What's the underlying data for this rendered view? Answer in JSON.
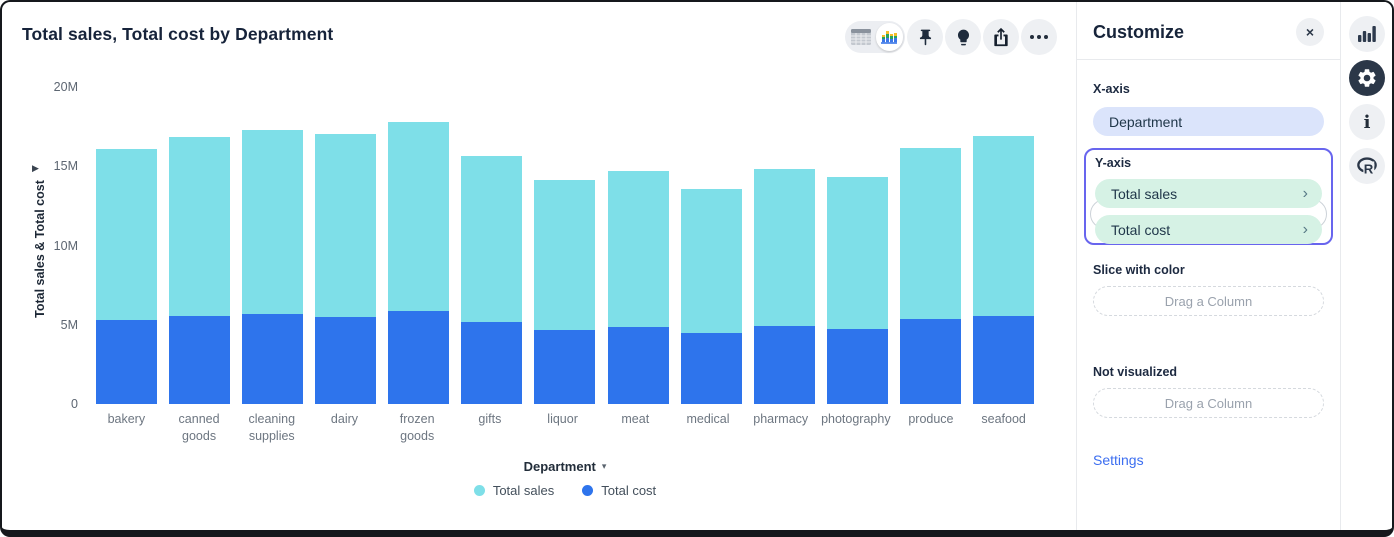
{
  "window": {
    "title": "Total sales, Total cost by Department"
  },
  "toolbar": {
    "view_toggle": {
      "options": [
        "table-view",
        "chart-view"
      ],
      "selected": "chart-view"
    },
    "buttons": [
      "pin",
      "insights",
      "export",
      "more"
    ]
  },
  "icons": {
    "y_axis_expand": "▶",
    "x_axis_dropdown": "▾",
    "pill_chevron": "›",
    "close": "×",
    "info": "i",
    "r_logo": "R"
  },
  "chart_data": {
    "type": "bar",
    "stacked": true,
    "title": "Total sales, Total cost by Department",
    "xlabel": "Department",
    "ylabel": "Total sales & Total cost",
    "categories": [
      "bakery",
      "canned goods",
      "cleaning supplies",
      "dairy",
      "frozen goods",
      "gifts",
      "liquor",
      "meat",
      "medical",
      "pharmacy",
      "photography",
      "produce",
      "seafood"
    ],
    "series": [
      {
        "name": "Total sales",
        "color": "#7EDFE8",
        "values": [
          10800000,
          11300000,
          11600000,
          11550000,
          11950000,
          10500000,
          9500000,
          9850000,
          9050000,
          9900000,
          9600000,
          10800000,
          11350000
        ]
      },
      {
        "name": "Total cost",
        "color": "#2E74EC",
        "values": [
          5300000,
          5550000,
          5700000,
          5500000,
          5850000,
          5150000,
          4650000,
          4850000,
          4500000,
          4900000,
          4750000,
          5350000,
          5550000
        ]
      }
    ],
    "stack_order_bottom_to_top": [
      "Total cost",
      "Total sales"
    ],
    "ylim": [
      0,
      20000000
    ],
    "yticks": [
      {
        "value": 0,
        "label": "0"
      },
      {
        "value": 5000000,
        "label": "5M"
      },
      {
        "value": 10000000,
        "label": "10M"
      },
      {
        "value": 15000000,
        "label": "15M"
      },
      {
        "value": 20000000,
        "label": "20M"
      }
    ],
    "grid": false,
    "legend_position": "bottom"
  },
  "panel": {
    "title": "Customize",
    "sections": {
      "x_axis": {
        "label": "X-axis",
        "value": "Department"
      },
      "y_axis": {
        "label": "Y-axis",
        "items": [
          {
            "label": "Total sales"
          },
          {
            "label": "Total cost"
          }
        ]
      },
      "slice": {
        "label": "Slice with color",
        "placeholder": "Drag a Column"
      },
      "not_visualized": {
        "label": "Not visualized",
        "placeholder": "Drag a Column"
      }
    },
    "settings_label": "Settings"
  },
  "side_rail": {
    "icons": [
      "bar-chart",
      "settings-gear",
      "info",
      "r-logo"
    ],
    "active": "settings-gear"
  },
  "colors": {
    "sales": "#7EDFE8",
    "cost": "#2E74EC",
    "accent_border": "#6865EE",
    "x_pill_bg": "#DBE4FB",
    "y_pill_bg": "#D6F2E5",
    "link": "#3C6EF0"
  }
}
